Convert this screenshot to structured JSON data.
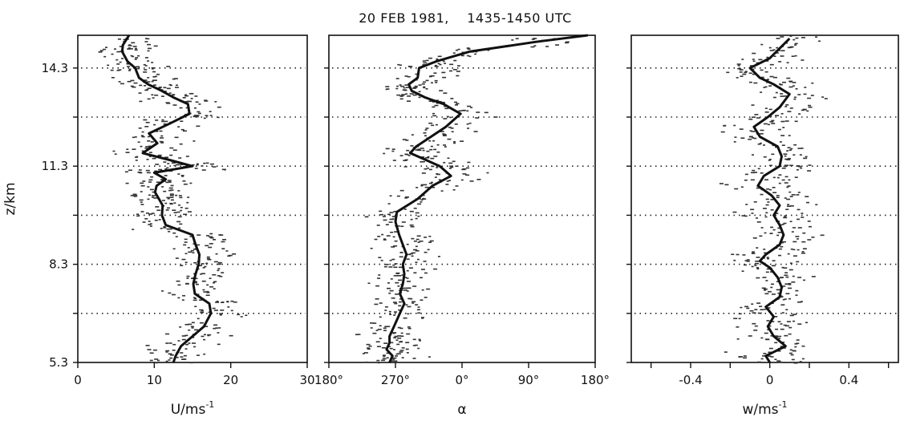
{
  "title": "20 FEB 1981,    1435-1450 UTC",
  "chart_data": [
    {
      "type": "line",
      "panel": "wind-speed",
      "xlabel": "U/ms",
      "xlabel_sup": "-1",
      "ylabel": "z/km",
      "xlim": [
        0,
        30
      ],
      "ylim": [
        5.3,
        15.3
      ],
      "x_ticks": [
        0,
        10,
        20,
        30
      ],
      "x_tick_labels": [
        "0",
        "10",
        "20",
        "30"
      ],
      "y_tick_labels": [
        "5.3",
        "8.3",
        "11.3",
        "14.3"
      ],
      "y_ticks": [
        5.3,
        8.3,
        11.3,
        14.3
      ],
      "gridlines_y": [
        6.8,
        8.3,
        9.8,
        11.3,
        12.8,
        14.3
      ],
      "grid": "dotted horizontal",
      "series": [
        {
          "points": [
            [
              12.5,
              5.3
            ],
            [
              12.8,
              5.5
            ],
            [
              13.5,
              5.8
            ],
            [
              15,
              6.1
            ],
            [
              16.5,
              6.4
            ],
            [
              17.4,
              6.8
            ],
            [
              17.2,
              7.1
            ],
            [
              15.3,
              7.4
            ],
            [
              15.1,
              7.7
            ],
            [
              15.4,
              8.0
            ],
            [
              15.8,
              8.3
            ],
            [
              15.9,
              8.6
            ],
            [
              15.4,
              8.9
            ],
            [
              15.0,
              9.2
            ],
            [
              11.5,
              9.5
            ],
            [
              11.0,
              9.8
            ],
            [
              11.1,
              10.1
            ],
            [
              10.6,
              10.3
            ],
            [
              10.1,
              10.5
            ],
            [
              10.3,
              10.7
            ],
            [
              11.5,
              10.9
            ],
            [
              10.0,
              11.1
            ],
            [
              15.0,
              11.3
            ],
            [
              11.8,
              11.5
            ],
            [
              8.5,
              11.7
            ],
            [
              10.4,
              12.0
            ],
            [
              9.3,
              12.3
            ],
            [
              12.0,
              12.6
            ],
            [
              14.6,
              12.9
            ],
            [
              14.4,
              13.2
            ],
            [
              12.5,
              13.4
            ],
            [
              11.0,
              13.6
            ],
            [
              9.2,
              13.8
            ],
            [
              8.0,
              14.0
            ],
            [
              7.5,
              14.3
            ],
            [
              6.5,
              14.5
            ],
            [
              5.8,
              14.8
            ],
            [
              5.9,
              15.0
            ],
            [
              6.7,
              15.3
            ]
          ]
        }
      ]
    },
    {
      "type": "line",
      "panel": "wind-direction",
      "xlabel": "α",
      "xlim": [
        180,
        540
      ],
      "x_ticks": [
        180,
        270,
        360,
        450,
        540
      ],
      "x_tick_labels": [
        "180°",
        "270°",
        "0°",
        "90°",
        "180°"
      ],
      "ylim": [
        5.3,
        15.3
      ],
      "gridlines_y": [
        6.8,
        8.3,
        9.8,
        11.3,
        12.8,
        14.3
      ],
      "grid": "dotted horizontal",
      "series": [
        {
          "points": [
            [
              262,
              5.3
            ],
            [
              266,
              5.5
            ],
            [
              258,
              5.7
            ],
            [
              262,
              5.9
            ],
            [
              262,
              6.1
            ],
            [
              268,
              6.4
            ],
            [
              276,
              6.8
            ],
            [
              282,
              7.1
            ],
            [
              276,
              7.4
            ],
            [
              280,
              7.7
            ],
            [
              282,
              8.0
            ],
            [
              280,
              8.3
            ],
            [
              285,
              8.6
            ],
            [
              280,
              8.9
            ],
            [
              275,
              9.2
            ],
            [
              270,
              9.6
            ],
            [
              272,
              9.9
            ],
            [
              300,
              10.3
            ],
            [
              320,
              10.7
            ],
            [
              345,
              11.0
            ],
            [
              330,
              11.3
            ],
            [
              310,
              11.5
            ],
            [
              290,
              11.7
            ],
            [
              298,
              11.9
            ],
            [
              318,
              12.2
            ],
            [
              338,
              12.5
            ],
            [
              358,
              12.9
            ],
            [
              335,
              13.2
            ],
            [
              310,
              13.4
            ],
            [
              292,
              13.6
            ],
            [
              288,
              13.8
            ],
            [
              300,
              14.0
            ],
            [
              302,
              14.3
            ],
            [
              325,
              14.5
            ],
            [
              370,
              14.8
            ],
            [
              460,
              15.1
            ],
            [
              530,
              15.3
            ]
          ]
        }
      ]
    },
    {
      "type": "line",
      "panel": "vertical-velocity",
      "xlabel": "w/ms",
      "xlabel_sup": "-1",
      "xlim": [
        -0.7,
        0.65
      ],
      "x_ticks": [
        -0.6,
        -0.4,
        -0.2,
        0,
        0.2,
        0.4,
        0.6
      ],
      "x_tick_labels": [
        "-0.4",
        "0",
        "0.4"
      ],
      "x_tick_label_values": [
        -0.4,
        0,
        0.4
      ],
      "ylim": [
        5.3,
        15.3
      ],
      "gridlines_y": [
        6.8,
        8.3,
        9.8,
        11.3,
        12.8,
        14.3
      ],
      "grid": "dotted horizontal",
      "series": [
        {
          "points": [
            [
              0.0,
              5.3
            ],
            [
              -0.02,
              5.5
            ],
            [
              0.08,
              5.8
            ],
            [
              0.02,
              6.1
            ],
            [
              -0.01,
              6.4
            ],
            [
              0.02,
              6.7
            ],
            [
              -0.02,
              7.0
            ],
            [
              0.05,
              7.3
            ],
            [
              0.06,
              7.6
            ],
            [
              0.04,
              7.9
            ],
            [
              0.0,
              8.2
            ],
            [
              -0.05,
              8.4
            ],
            [
              -0.02,
              8.6
            ],
            [
              0.05,
              8.9
            ],
            [
              0.07,
              9.2
            ],
            [
              0.05,
              9.5
            ],
            [
              0.02,
              9.8
            ],
            [
              0.05,
              10.1
            ],
            [
              0.01,
              10.4
            ],
            [
              -0.06,
              10.7
            ],
            [
              -0.03,
              11.0
            ],
            [
              0.05,
              11.3
            ],
            [
              0.06,
              11.6
            ],
            [
              0.04,
              11.9
            ],
            [
              -0.05,
              12.2
            ],
            [
              -0.08,
              12.5
            ],
            [
              -0.01,
              12.8
            ],
            [
              0.05,
              13.1
            ],
            [
              0.1,
              13.5
            ],
            [
              0.02,
              13.8
            ],
            [
              -0.05,
              14.0
            ],
            [
              -0.1,
              14.3
            ],
            [
              0.0,
              14.6
            ],
            [
              0.05,
              14.9
            ],
            [
              0.1,
              15.2
            ]
          ]
        }
      ]
    }
  ]
}
